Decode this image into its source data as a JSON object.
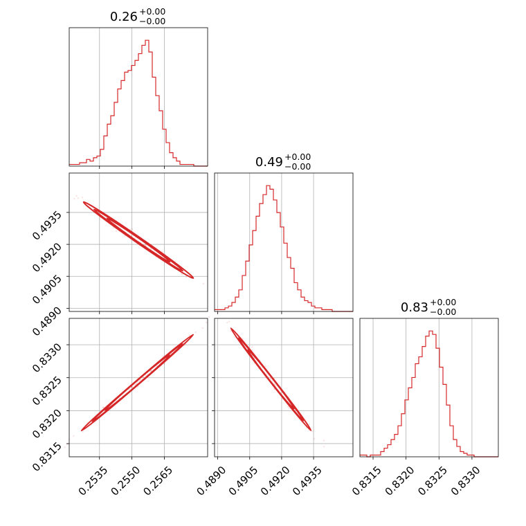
{
  "chart_data": {
    "type": "corner",
    "color": "#d62728",
    "grid": true,
    "parameters": [
      {
        "range": [
          0.2521,
          0.2585
        ],
        "ticks": [
          "0.2535",
          "0.2550",
          "0.2565"
        ],
        "tick_values": [
          0.2535,
          0.255,
          0.2565
        ],
        "title": {
          "base": "0.26",
          "sup": "+0.00",
          "sub": "−0.00"
        },
        "hist": {
          "start": 0.2521,
          "bin_width": 0.00016,
          "counts": [
            1,
            1,
            1,
            2,
            2,
            4,
            3,
            5,
            6,
            10,
            18,
            25,
            30,
            38,
            46,
            51,
            56,
            57,
            60,
            63,
            67,
            72,
            75,
            68,
            53,
            42,
            33,
            22,
            14,
            8,
            5,
            3,
            1,
            1,
            1,
            1,
            0,
            0,
            0,
            0
          ]
        }
      },
      {
        "range": [
          0.48885,
          0.49535
        ],
        "ticks": [
          "0.4890",
          "0.4905",
          "0.4920",
          "0.4935"
        ],
        "tick_values": [
          0.489,
          0.4905,
          0.492,
          0.4935
        ],
        "title": {
          "base": "0.49",
          "sup": "+0.00",
          "sub": "−0.00"
        },
        "hist": {
          "start": 0.48885,
          "bin_width": 0.0001625,
          "counts": [
            1,
            1,
            1,
            2,
            3,
            5,
            8,
            12,
            20,
            28,
            37,
            45,
            53,
            60,
            65,
            70,
            68,
            62,
            55,
            47,
            38,
            30,
            24,
            16,
            12,
            8,
            6,
            5,
            3,
            2,
            2,
            1,
            1,
            1,
            0,
            0,
            0,
            0,
            0,
            0
          ]
        }
      },
      {
        "range": [
          0.8313,
          0.8334
        ],
        "ticks": [
          "0.8315",
          "0.8320",
          "0.8325",
          "0.8330"
        ],
        "tick_values": [
          0.8315,
          0.832,
          0.8325,
          0.833
        ],
        "title": {
          "base": "0.83",
          "sup": "+0.00",
          "sub": "−0.00"
        },
        "hist": {
          "start": 0.8313,
          "bin_width": 5.25e-05,
          "counts": [
            1,
            1,
            0,
            1,
            1,
            1,
            3,
            5,
            7,
            10,
            13,
            18,
            25,
            33,
            40,
            46,
            54,
            58,
            64,
            70,
            73,
            71,
            63,
            52,
            42,
            30,
            18,
            10,
            6,
            3,
            2,
            1,
            1,
            0,
            0,
            0,
            0,
            0,
            0,
            0
          ]
        }
      }
    ],
    "pairs": [
      {
        "x": 0,
        "y": 1,
        "start": [
          0.2526,
          0.4941
        ],
        "end": [
          0.258,
          0.4903
        ],
        "band": 0.00022
      },
      {
        "x": 0,
        "y": 2,
        "start": [
          0.2525,
          0.83165
        ],
        "end": [
          0.258,
          0.8332
        ],
        "band": 5e-05
      },
      {
        "x": 1,
        "y": 2,
        "start": [
          0.4895,
          0.8333
        ],
        "end": [
          0.4935,
          0.83165
        ],
        "band": 5e-05
      }
    ]
  }
}
